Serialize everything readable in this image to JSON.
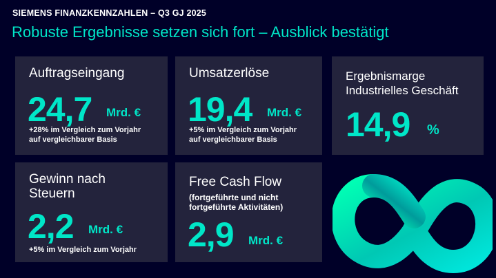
{
  "header": {
    "kicker": "SIEMENS FINANZKENNZAHLEN – Q3 GJ 2025",
    "headline": "Robuste Ergebnisse setzen sich fort – Ausblick bestätigt"
  },
  "cards": {
    "orders": {
      "label": "Auftragseingang",
      "value": "24,7",
      "unit": "Mrd. €",
      "note_line1": "+28% im Vergleich zum Vorjahr",
      "note_line2": "auf vergleichbarer Basis"
    },
    "revenue": {
      "label": "Umsatzerlöse",
      "value": "19,4",
      "unit": "Mrd. €",
      "note_line1": "+5% im Vergleich zum Vorjahr",
      "note_line2": "auf vergleichbarer Basis"
    },
    "margin": {
      "label_line1": "Ergebnismarge",
      "label_line2": "Industrielles Geschäft",
      "value": "14,9",
      "unit": "%"
    },
    "net_income": {
      "label_line1": "Gewinn nach",
      "label_line2": "Steuern",
      "value": "2,2",
      "unit": "Mrd. €",
      "note_line1": "+5% im Vergleich zum Vorjahr"
    },
    "fcf": {
      "label": "Free Cash Flow",
      "sub_line1": "(fortgeführte und nicht",
      "sub_line2": "fortgeführte Aktivitäten)",
      "value": "2,9",
      "unit": "Mrd. €"
    }
  },
  "colors": {
    "background": "#000028",
    "card": "#23233c",
    "accent": "#00e6c8"
  },
  "decoration": {
    "icon": "infinity-icon"
  }
}
